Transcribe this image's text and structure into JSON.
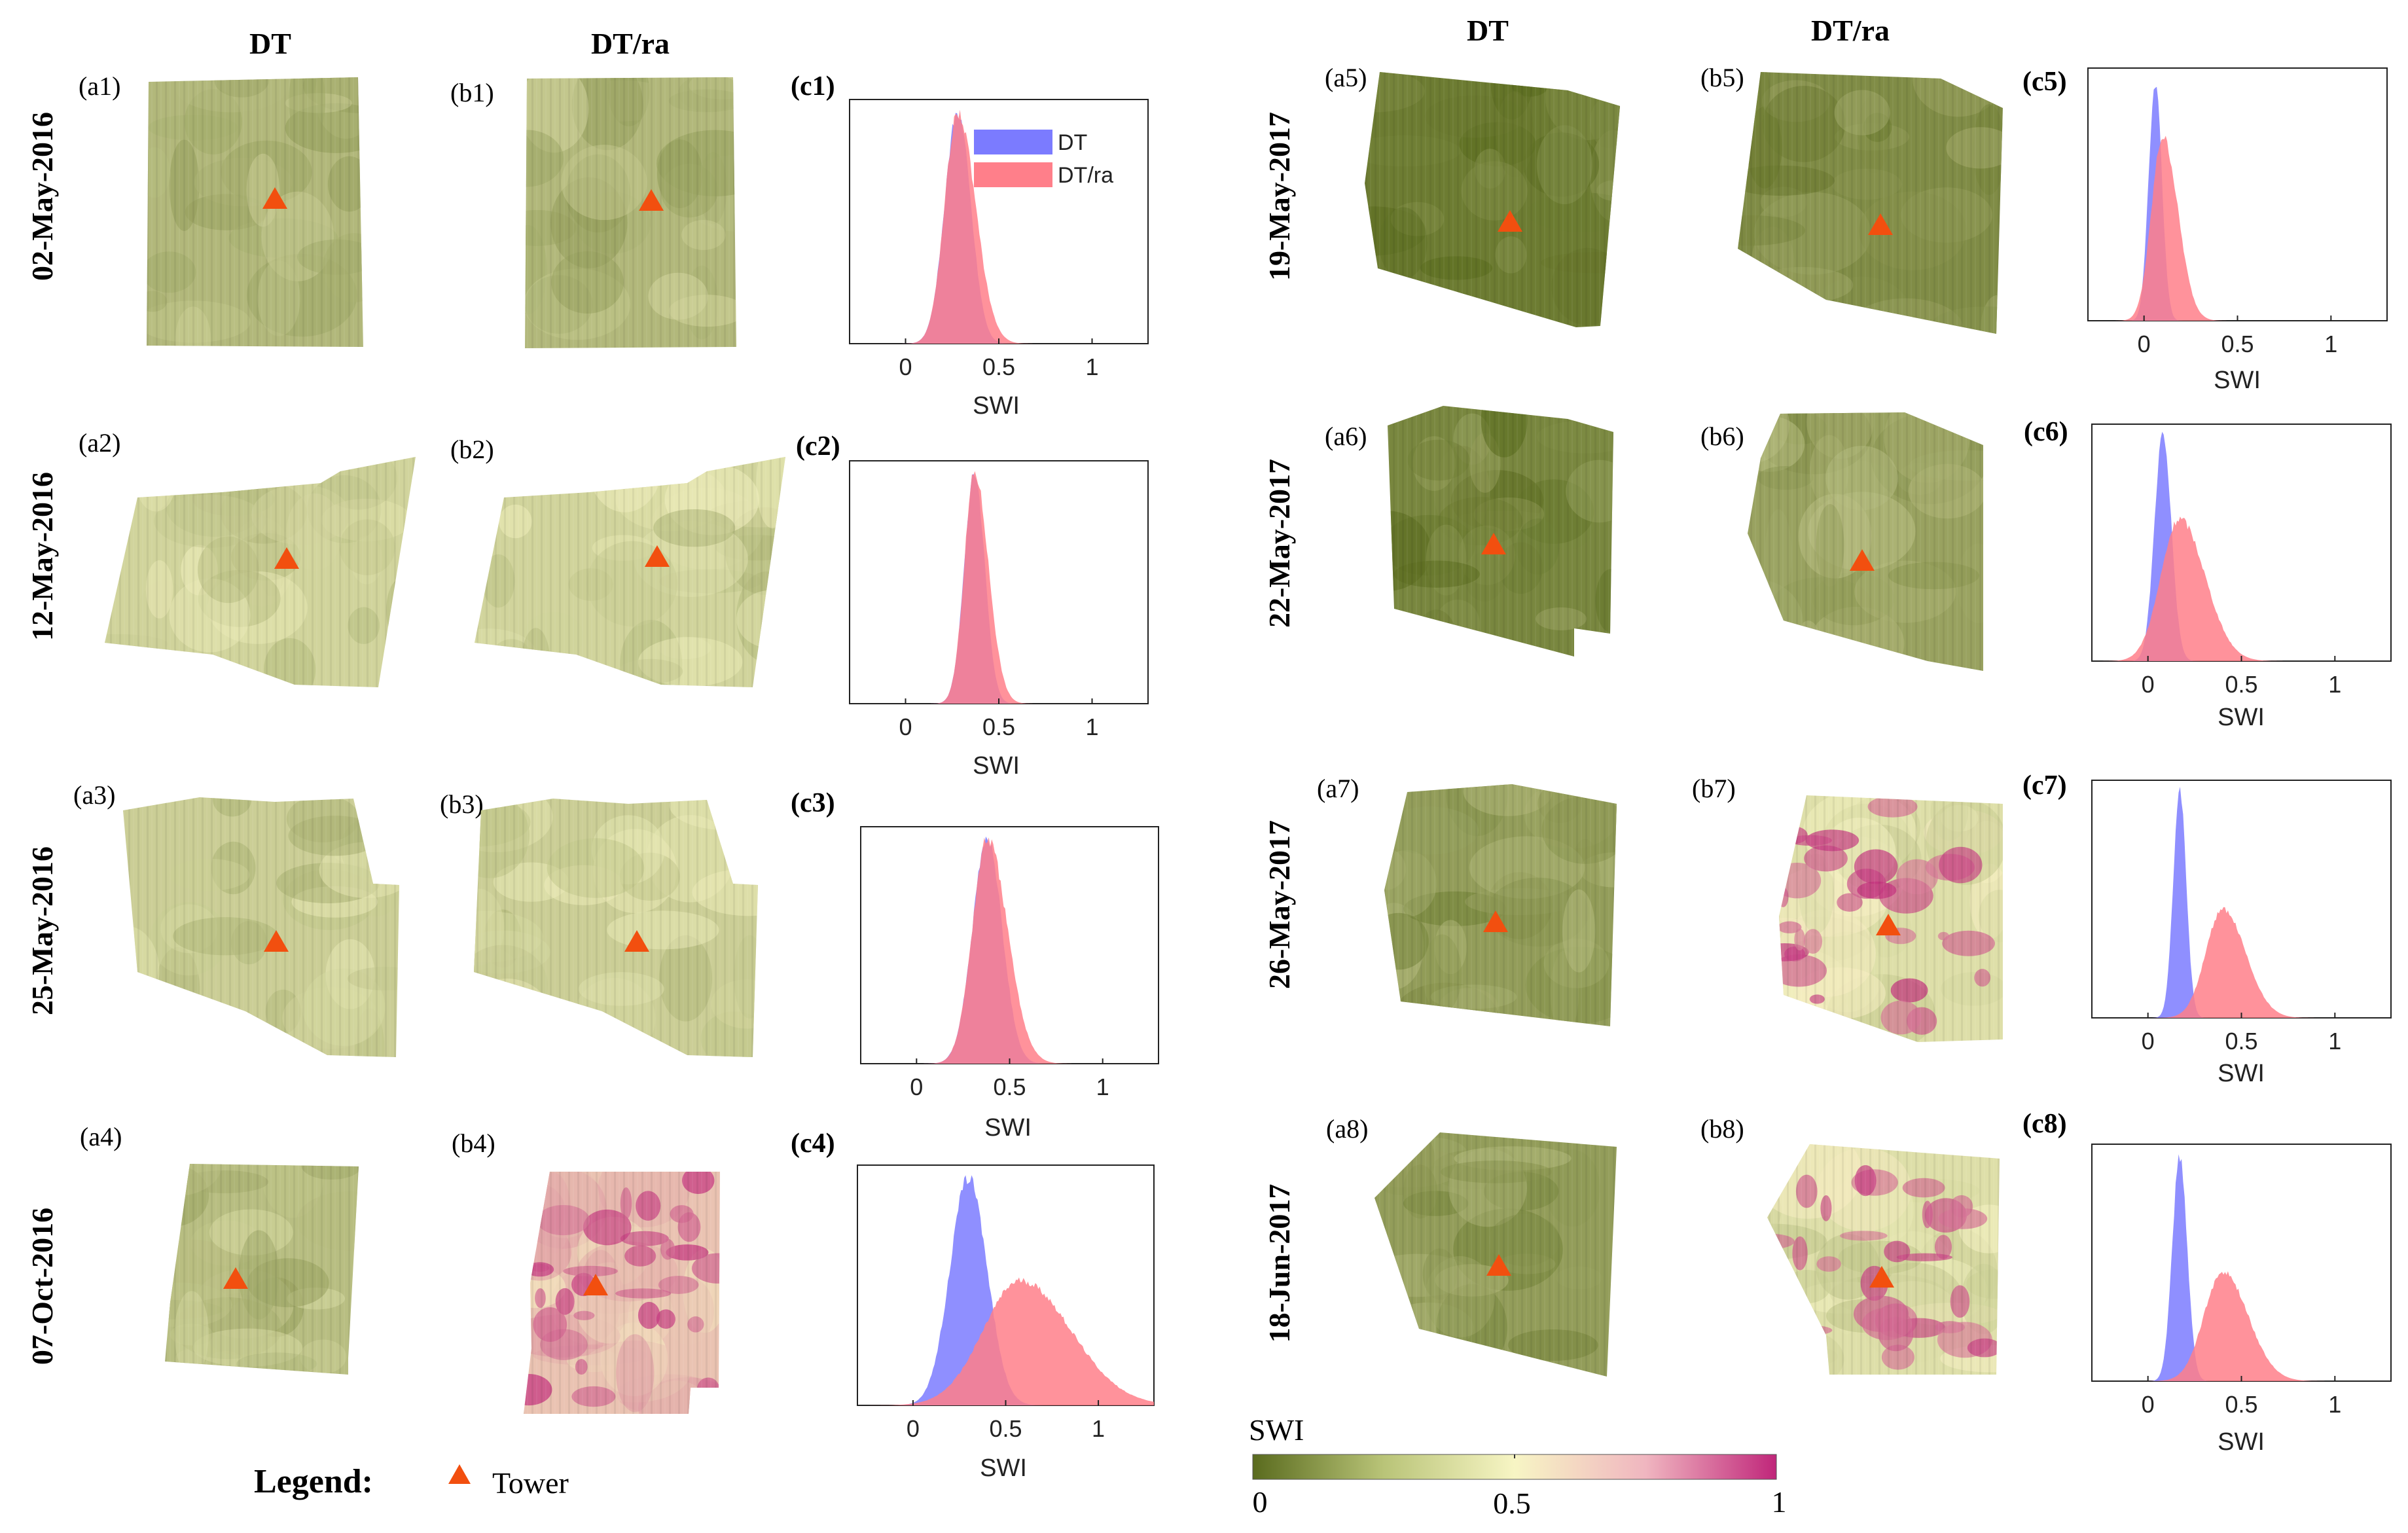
{
  "figure": {
    "left_columns": {
      "dt": "DT",
      "dtra": "DT/ra"
    },
    "right_columns": {
      "dt": "DT",
      "dtra": "DT/ra"
    },
    "legend": {
      "title": "Legend:",
      "tower_label": "Tower",
      "tower_color": "#f24f0f"
    },
    "colorbar": {
      "title": "SWI",
      "ticks": [
        "0",
        "0.5",
        "1"
      ],
      "colors": [
        "#5a6b1e",
        "#b9c478",
        "#f7f5c4",
        "#f0b6c0",
        "#c0267a"
      ]
    },
    "map_colors": {
      "low": "#5a6b1e",
      "mid": "#f7f5c4",
      "high": "#c0267a"
    }
  },
  "rows": [
    {
      "date": "02-May-2016",
      "a": "(a1)",
      "b": "(b1)",
      "c": "(c1)",
      "dt_level": 0.28,
      "dtra_level": 0.28
    },
    {
      "date": "12-May-2016",
      "a": "(a2)",
      "b": "(b2)",
      "c": "(c2)",
      "dt_level": 0.38,
      "dtra_level": 0.38
    },
    {
      "date": "25-May-2016",
      "a": "(a3)",
      "b": "(b3)",
      "c": "(c3)",
      "dt_level": 0.36,
      "dtra_level": 0.36
    },
    {
      "date": "07-Oct-2016",
      "a": "(a4)",
      "b": "(b4)",
      "c": "(c4)",
      "dt_level": 0.3,
      "dtra_level": 0.62
    },
    {
      "date": "19-May-2017",
      "a": "(a5)",
      "b": "(b5)",
      "c": "(c5)",
      "dt_level": 0.06,
      "dtra_level": 0.12
    },
    {
      "date": "22-May-2017",
      "a": "(a6)",
      "b": "(b6)",
      "c": "(c6)",
      "dt_level": 0.1,
      "dtra_level": 0.2
    },
    {
      "date": "26-May-2017",
      "a": "(a7)",
      "b": "(b7)",
      "c": "(c7)",
      "dt_level": 0.18,
      "dtra_level": 0.42
    },
    {
      "date": "18-Jun-2017",
      "a": "(a8)",
      "b": "(b8)",
      "c": "(c8)",
      "dt_level": 0.18,
      "dtra_level": 0.42
    }
  ],
  "chart_data": [
    {
      "id": "c1",
      "type": "histogram",
      "xlabel": "SWI",
      "xticks": [
        0,
        0.5,
        1
      ],
      "xlim": [
        -0.3,
        1.3
      ],
      "legend": [
        "DT",
        "DT/ra"
      ],
      "legend_position": "top-right",
      "series": [
        {
          "name": "DT",
          "color": "#7b7bff",
          "mean": 0.28,
          "sd": 0.07,
          "peak": 0.95
        },
        {
          "name": "DT/ra",
          "color": "#ff7f8a",
          "mean": 0.28,
          "sd": 0.07,
          "peak": 0.95
        }
      ]
    },
    {
      "id": "c2",
      "type": "histogram",
      "xlabel": "SWI",
      "xticks": [
        0,
        0.5,
        1
      ],
      "xlim": [
        -0.3,
        1.3
      ],
      "series": [
        {
          "name": "DT",
          "color": "#7b7bff",
          "mean": 0.37,
          "sd": 0.055,
          "peak": 0.95
        },
        {
          "name": "DT/ra",
          "color": "#ff7f8a",
          "mean": 0.37,
          "sd": 0.055,
          "peak": 0.95
        }
      ]
    },
    {
      "id": "c3",
      "type": "histogram",
      "xlabel": "SWI",
      "xticks": [
        0,
        0.5,
        1
      ],
      "xlim": [
        -0.3,
        1.3
      ],
      "series": [
        {
          "name": "DT",
          "color": "#7b7bff",
          "mean": 0.38,
          "sd": 0.08,
          "peak": 0.95
        },
        {
          "name": "DT/ra",
          "color": "#ff7f8a",
          "mean": 0.38,
          "sd": 0.08,
          "peak": 0.95
        }
      ]
    },
    {
      "id": "c4",
      "type": "histogram",
      "xlabel": "SWI",
      "xticks": [
        0,
        0.5,
        1
      ],
      "xlim": [
        -0.3,
        1.3
      ],
      "series": [
        {
          "name": "DT",
          "color": "#7b7bff",
          "mean": 0.3,
          "sd": 0.1,
          "peak": 0.95
        },
        {
          "name": "DT/ra",
          "color": "#ff7f8a",
          "mean": 0.58,
          "sd": 0.2,
          "peak": 0.52
        }
      ]
    },
    {
      "id": "c5",
      "type": "histogram",
      "xlabel": "SWI",
      "xticks": [
        0,
        0.5,
        1
      ],
      "xlim": [
        -0.3,
        1.3
      ],
      "series": [
        {
          "name": "DT",
          "color": "#7b7bff",
          "mean": 0.06,
          "sd": 0.035,
          "peak": 0.95
        },
        {
          "name": "DT/ra",
          "color": "#ff7f8a",
          "mean": 0.1,
          "sd": 0.06,
          "peak": 0.73
        }
      ]
    },
    {
      "id": "c6",
      "type": "histogram",
      "xlabel": "SWI",
      "xticks": [
        0,
        0.5,
        1
      ],
      "xlim": [
        -0.3,
        1.3
      ],
      "series": [
        {
          "name": "DT",
          "color": "#7b7bff",
          "mean": 0.08,
          "sd": 0.045,
          "peak": 0.95
        },
        {
          "name": "DT/ra",
          "color": "#ff7f8a",
          "mean": 0.17,
          "sd": 0.1,
          "peak": 0.6
        }
      ]
    },
    {
      "id": "c7",
      "type": "histogram",
      "xlabel": "SWI",
      "xticks": [
        0,
        0.5,
        1
      ],
      "xlim": [
        -0.3,
        1.3
      ],
      "series": [
        {
          "name": "DT",
          "color": "#7b7bff",
          "mean": 0.17,
          "sd": 0.035,
          "peak": 0.95
        },
        {
          "name": "DT/ra",
          "color": "#ff7f8a",
          "mean": 0.4,
          "sd": 0.09,
          "peak": 0.46
        }
      ]
    },
    {
      "id": "c8",
      "type": "histogram",
      "xlabel": "SWI",
      "xticks": [
        0,
        0.5,
        1
      ],
      "xlim": [
        -0.3,
        1.3
      ],
      "series": [
        {
          "name": "DT",
          "color": "#7b7bff",
          "mean": 0.17,
          "sd": 0.04,
          "peak": 0.95
        },
        {
          "name": "DT/ra",
          "color": "#ff7f8a",
          "mean": 0.4,
          "sd": 0.1,
          "peak": 0.46
        }
      ]
    }
  ]
}
